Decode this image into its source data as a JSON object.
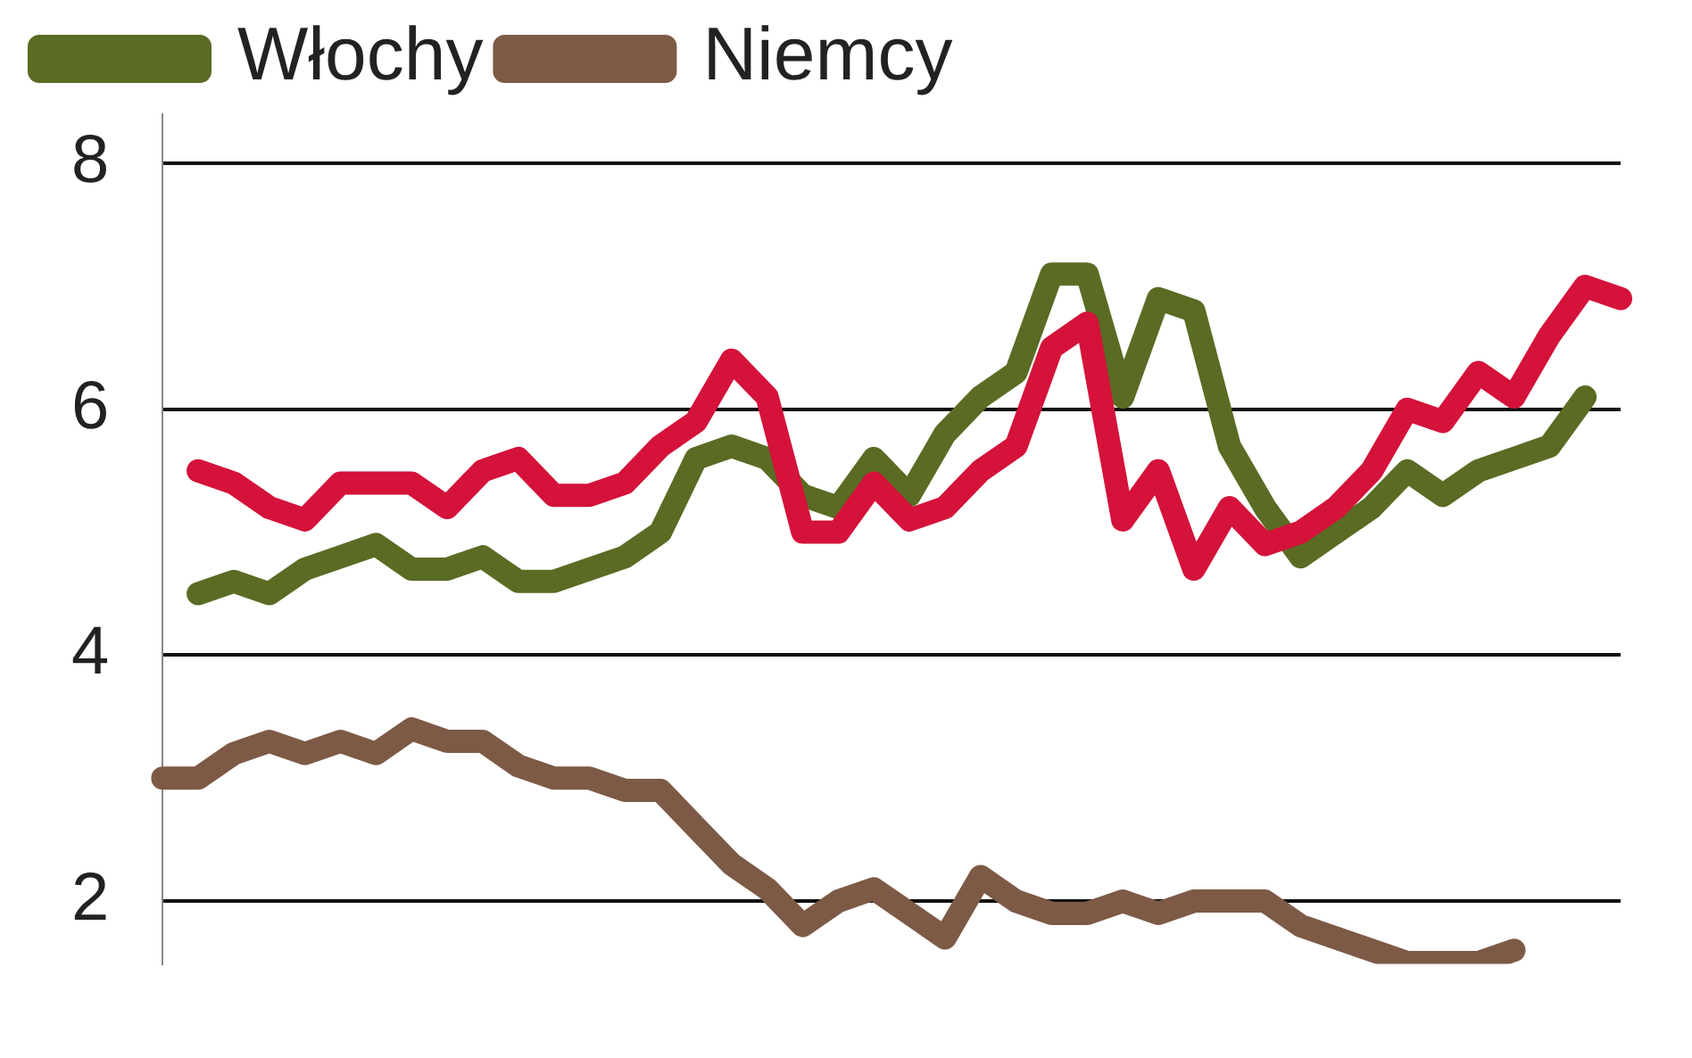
{
  "chart_data": {
    "type": "line",
    "categories": [
      null,
      null,
      null,
      null,
      null,
      null,
      null,
      null,
      null,
      null,
      null,
      null,
      null,
      null,
      null,
      null,
      null,
      null,
      null,
      null,
      null,
      null,
      null,
      null,
      null,
      null,
      null,
      null,
      null,
      null,
      null,
      null,
      null,
      null,
      null,
      null,
      null,
      null,
      null,
      null,
      null,
      null
    ],
    "series": [
      {
        "color": "#d4123a",
        "values": [
          null,
          5.5,
          5.4,
          5.2,
          5.1,
          5.4,
          5.4,
          5.4,
          5.2,
          5.5,
          5.6,
          5.3,
          5.3,
          5.4,
          5.7,
          5.9,
          6.4,
          6.1,
          5.0,
          5.0,
          5.4,
          5.1,
          5.2,
          5.5,
          5.7,
          6.5,
          6.7,
          5.1,
          5.5,
          4.7,
          5.2,
          4.9,
          5.0,
          5.2,
          5.5,
          6.0,
          5.9,
          6.3,
          6.1,
          6.6,
          7.0,
          6.9
        ]
      },
      {
        "name": "Włochy",
        "color": "#5a6b23",
        "values": [
          null,
          4.5,
          4.6,
          4.5,
          4.7,
          4.8,
          4.9,
          4.7,
          4.7,
          4.8,
          4.6,
          4.6,
          4.7,
          4.8,
          5.0,
          5.6,
          5.7,
          5.6,
          5.3,
          5.2,
          5.6,
          5.3,
          5.8,
          6.1,
          6.3,
          7.1,
          7.1,
          6.1,
          6.9,
          6.8,
          5.7,
          5.2,
          4.8,
          5.0,
          5.2,
          5.5,
          5.3,
          5.5,
          5.6,
          5.7,
          6.1,
          null
        ]
      },
      {
        "name": "Niemcy",
        "color": "#7d5a46",
        "values": [
          3.0,
          3.0,
          3.2,
          3.3,
          3.2,
          3.3,
          3.2,
          3.4,
          3.3,
          3.3,
          3.1,
          3.0,
          3.0,
          2.9,
          2.9,
          2.6,
          2.3,
          2.1,
          1.8,
          2.0,
          2.1,
          1.9,
          1.7,
          2.2,
          2.0,
          1.9,
          1.9,
          2.0,
          1.9,
          2.0,
          2.0,
          2.0,
          1.8,
          1.7,
          1.6,
          1.5,
          1.5,
          1.5,
          1.6,
          null,
          null,
          null
        ]
      }
    ],
    "ylim": [
      1.49,
      8.4
    ],
    "yticks": [
      2,
      4,
      6,
      8
    ],
    "grid": "y",
    "legend": "top",
    "marker": "none",
    "line_style": "solid"
  }
}
